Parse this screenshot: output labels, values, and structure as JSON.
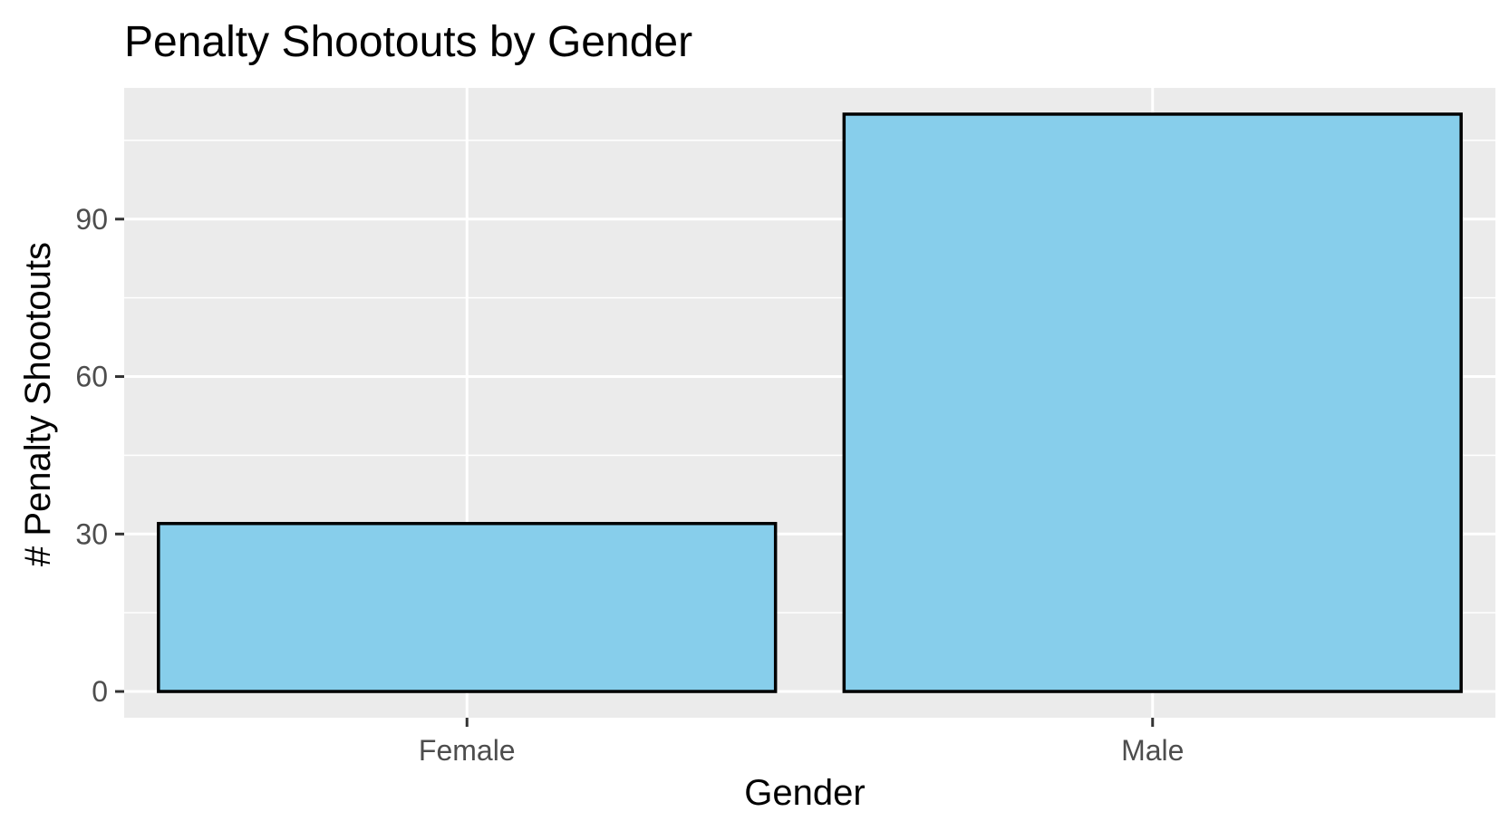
{
  "chart_data": {
    "type": "bar",
    "title": "Penalty Shootouts by Gender",
    "xlabel": "Gender",
    "ylabel": "# Penalty Shootouts",
    "categories": [
      "Female",
      "Male"
    ],
    "values": [
      32,
      110
    ],
    "ylim": [
      -5,
      115
    ],
    "yticks": [
      0,
      30,
      60,
      90
    ],
    "grid": true,
    "legend": "none",
    "colors": {
      "bar_fill": "#87CEEB",
      "bar_outline": "#000000",
      "panel_background": "#EBEBEB",
      "grid": "#FFFFFF"
    }
  }
}
